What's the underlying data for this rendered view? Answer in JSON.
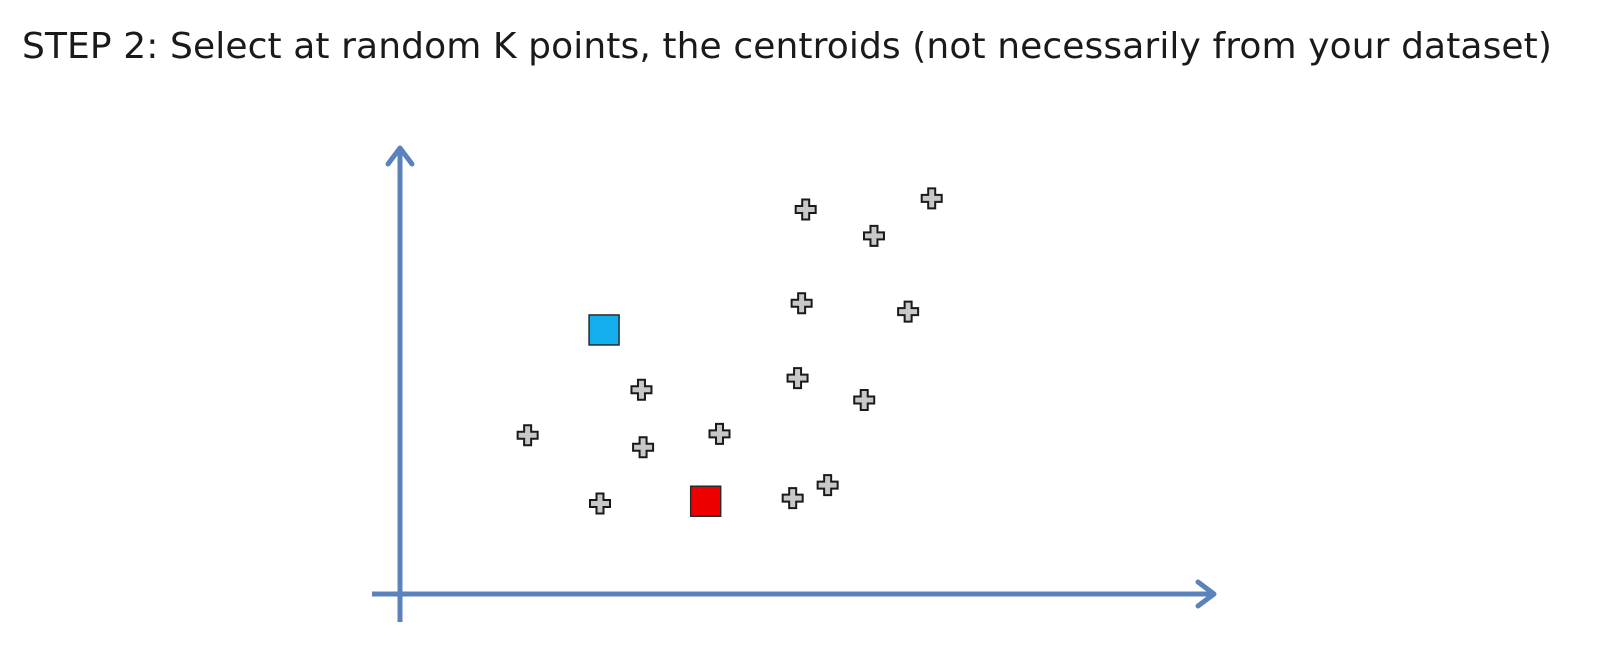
{
  "slide": {
    "title": "STEP 2: Select at random K points, the centroids (not necessarily from your dataset)"
  },
  "colors": {
    "axis": "#5b82bc",
    "point_fill": "#c8c8c8",
    "point_stroke": "#1a1a1a",
    "centroid_blue": "#12aeed",
    "centroid_red": "#ee0000"
  },
  "chart_data": {
    "type": "scatter",
    "xlim": [
      0,
      100
    ],
    "ylim": [
      0,
      100
    ],
    "points": [
      {
        "x": 15.7,
        "y": 35.6
      },
      {
        "x": 24.6,
        "y": 20.3
      },
      {
        "x": 29.7,
        "y": 45.8
      },
      {
        "x": 29.9,
        "y": 32.9
      },
      {
        "x": 39.3,
        "y": 35.9
      },
      {
        "x": 48.3,
        "y": 21.5
      },
      {
        "x": 52.6,
        "y": 24.4
      },
      {
        "x": 48.9,
        "y": 48.4
      },
      {
        "x": 57.1,
        "y": 43.5
      },
      {
        "x": 49.4,
        "y": 65.2
      },
      {
        "x": 62.5,
        "y": 63.3
      },
      {
        "x": 49.9,
        "y": 86.2
      },
      {
        "x": 58.3,
        "y": 80.3
      },
      {
        "x": 65.4,
        "y": 88.7
      }
    ],
    "centroids": [
      {
        "x": 25.1,
        "y": 59.2,
        "shape": "square",
        "color": "#12aeed"
      },
      {
        "x": 37.6,
        "y": 20.8,
        "shape": "square",
        "color": "#ee0000"
      }
    ]
  }
}
